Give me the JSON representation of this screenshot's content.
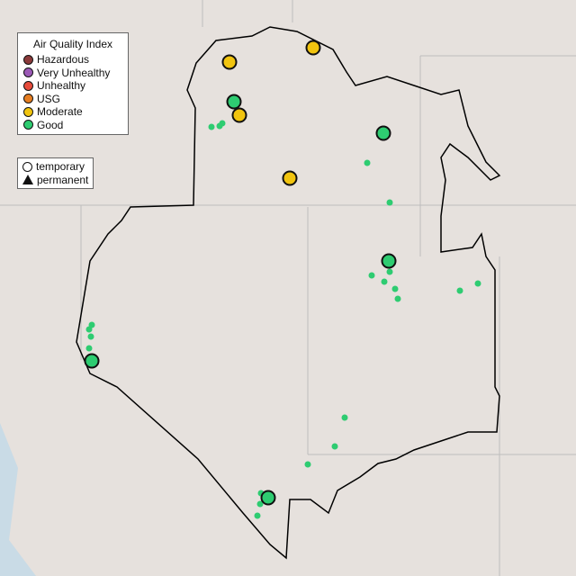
{
  "legend": {
    "title": "Air Quality Index",
    "categories": [
      {
        "label": "Hazardous",
        "color": "#8b3a3a"
      },
      {
        "label": "Very Unhealthy",
        "color": "#9b59b6"
      },
      {
        "label": "Unhealthy",
        "color": "#e74c3c"
      },
      {
        "label": "USG",
        "color": "#e67e22"
      },
      {
        "label": "Moderate",
        "color": "#f1c40f"
      },
      {
        "label": "Good",
        "color": "#2ecc71"
      }
    ],
    "shapes": [
      {
        "label": "temporary",
        "shape": "circle"
      },
      {
        "label": "permanent",
        "shape": "triangle"
      }
    ]
  },
  "monitors": {
    "permanent_moderate_color": "#f1c40f",
    "good_color": "#2ecc71"
  }
}
